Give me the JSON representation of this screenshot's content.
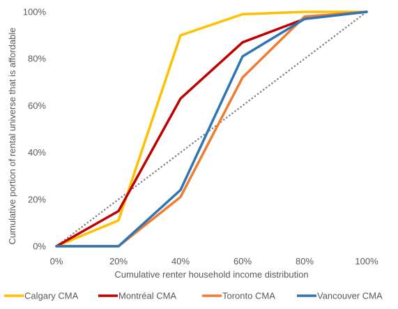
{
  "chart_data": {
    "type": "line",
    "x": [
      "0%",
      "20%",
      "40%",
      "60%",
      "80%",
      "100%"
    ],
    "x_values": [
      0,
      20,
      40,
      60,
      80,
      100
    ],
    "xlabel": "Cumulative renter household income distribution",
    "ylabel": "Cumulative portion of rental universe that is affordable",
    "xlim": [
      0,
      100
    ],
    "ylim": [
      0,
      100
    ],
    "x_ticks": [
      "0%",
      "20%",
      "40%",
      "60%",
      "80%",
      "100%"
    ],
    "y_ticks": [
      "0%",
      "20%",
      "40%",
      "60%",
      "80%",
      "100%"
    ],
    "grid": false,
    "legend_position": "bottom",
    "reference_line": {
      "values": [
        0,
        20,
        40,
        60,
        80,
        100
      ],
      "style": "dotted",
      "color": "#808080"
    },
    "series": [
      {
        "name": "Calgary CMA",
        "color": "#FFC000",
        "values": [
          0,
          11,
          90,
          99,
          100,
          100
        ]
      },
      {
        "name": "Montréal CMA",
        "color": "#C00000",
        "values": [
          0,
          15,
          63,
          87,
          97,
          100
        ]
      },
      {
        "name": "Toronto CMA",
        "color": "#ED7D31",
        "values": [
          0,
          0,
          21,
          72,
          98,
          100
        ]
      },
      {
        "name": "Vancouver CMA",
        "color": "#2E75B6",
        "values": [
          0,
          0,
          24,
          81,
          97,
          100
        ]
      }
    ]
  }
}
